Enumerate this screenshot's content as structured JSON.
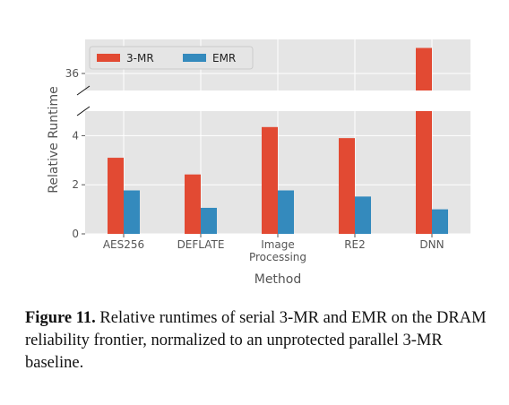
{
  "chart_data": {
    "type": "bar",
    "categories": [
      "AES256",
      "DEFLATE",
      "Image\nProcessing",
      "RE2",
      "DNN"
    ],
    "series": [
      {
        "name": "3-MR",
        "color": "#E24A33",
        "values": [
          3.1,
          2.42,
          4.35,
          3.9,
          37.5
        ]
      },
      {
        "name": "EMR",
        "color": "#348ABD",
        "values": [
          1.77,
          1.06,
          1.77,
          1.52,
          1.0
        ]
      }
    ],
    "xlabel": "Method",
    "ylabel": "Relative Runtime",
    "broken_axis": true,
    "lower_ylim": [
      0,
      5
    ],
    "upper_ylim": [
      35,
      38
    ],
    "lower_yticks": [
      0,
      2,
      4
    ],
    "upper_yticks": [
      36
    ],
    "grid": true,
    "legend": "top-left"
  },
  "caption": {
    "label": "Figure 11.",
    "text": " Relative runtimes of serial 3-MR and EMR on the DRAM reliability frontier, normalized to an unprotected parallel 3-MR baseline."
  }
}
